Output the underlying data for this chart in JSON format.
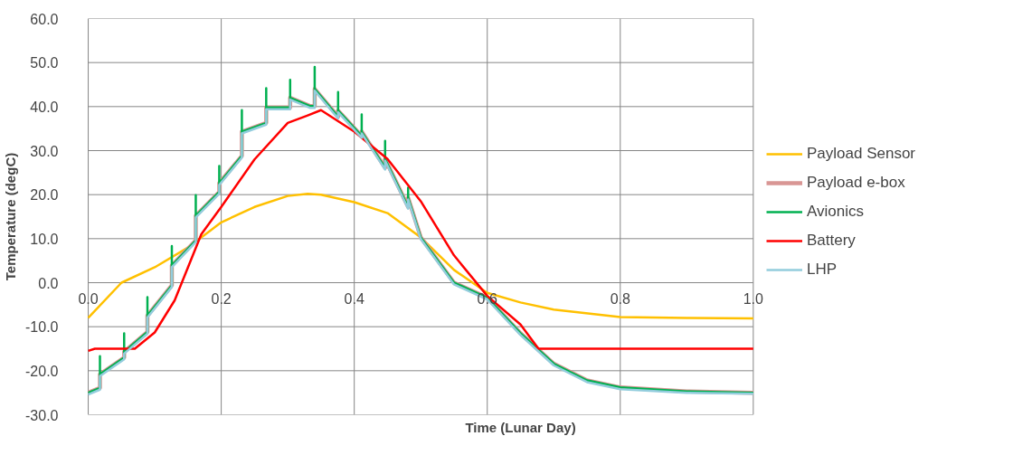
{
  "chart_data": {
    "type": "line",
    "xlabel": "Time (Lunar Day)",
    "ylabel": "Temperature (degC)",
    "xlim": [
      0,
      1
    ],
    "ylim": [
      -30,
      60
    ],
    "xticks": [
      {
        "value": 0,
        "label": "0.0"
      },
      {
        "value": 0.2,
        "label": "0.2"
      },
      {
        "value": 0.4,
        "label": "0.4"
      },
      {
        "value": 0.6,
        "label": "0.6"
      },
      {
        "value": 0.8,
        "label": "0.8"
      },
      {
        "value": 1,
        "label": "1.0"
      }
    ],
    "yticks": [
      {
        "value": -30,
        "label": "-30.0"
      },
      {
        "value": -20,
        "label": "-20.0"
      },
      {
        "value": -10,
        "label": "-10.0"
      },
      {
        "value": 0,
        "label": "0.0"
      },
      {
        "value": 10,
        "label": "10.0"
      },
      {
        "value": 20,
        "label": "20.0"
      },
      {
        "value": 30,
        "label": "30.0"
      },
      {
        "value": 40,
        "label": "40.0"
      },
      {
        "value": 50,
        "label": "50.0"
      },
      {
        "value": 60,
        "label": "60.0"
      }
    ],
    "grid": true,
    "legend": "right",
    "line_style": "solid",
    "marker": "none",
    "series": [
      {
        "name": "Payload Sensor",
        "color": "#ffc000",
        "x": [
          0,
          0.05,
          0.1,
          0.15,
          0.2,
          0.25,
          0.3,
          0.33,
          0.35,
          0.4,
          0.45,
          0.5,
          0.55,
          0.6,
          0.65,
          0.7,
          0.8,
          0.9,
          1.0
        ],
        "values": [
          -8,
          0,
          3.5,
          8,
          13.7,
          17.2,
          19.7,
          20.2,
          20,
          18.3,
          15.8,
          10.3,
          2.9,
          -2.3,
          -4.5,
          -6.1,
          -7.8,
          -8,
          -8.1
        ]
      },
      {
        "name": "Payload e-box",
        "color": "#d99694",
        "x": [
          0,
          0.0176,
          0.0176,
          0.054,
          0.054,
          0.089,
          0.089,
          0.1257,
          0.1257,
          0.1617,
          0.1617,
          0.197,
          0.197,
          0.231,
          0.231,
          0.2676,
          0.2676,
          0.3036,
          0.3036,
          0.334,
          0.3405,
          0.3405,
          0.3757,
          0.3757,
          0.4112,
          0.4112,
          0.4464,
          0.4464,
          0.481,
          0.481,
          0.5,
          0.55,
          0.6,
          0.65,
          0.7,
          0.75,
          0.8,
          0.9,
          1.0
        ],
        "values": [
          -25,
          -23.9,
          -20.8,
          -17,
          -15.7,
          -11.2,
          -7.5,
          -0.6,
          3.9,
          9.6,
          15.2,
          20.6,
          22.6,
          28.8,
          34.3,
          36.3,
          39.8,
          39.8,
          42,
          40.1,
          40.1,
          44,
          37.7,
          39.1,
          33.3,
          34.3,
          26.1,
          28.1,
          17.2,
          19.3,
          10.3,
          0,
          -3.4,
          -11.5,
          -18.4,
          -22.2,
          -23.8,
          -24.7,
          -25
        ]
      },
      {
        "name": "Avionics",
        "color": "#00b050",
        "x": [
          0,
          0.0176,
          0.0176,
          0.0176,
          0.0176,
          0.054,
          0.054,
          0.054,
          0.054,
          0.089,
          0.089,
          0.089,
          0.089,
          0.1257,
          0.1257,
          0.1257,
          0.1257,
          0.1617,
          0.1617,
          0.1617,
          0.1617,
          0.197,
          0.197,
          0.197,
          0.197,
          0.231,
          0.231,
          0.231,
          0.231,
          0.2676,
          0.2676,
          0.2676,
          0.2676,
          0.3036,
          0.3036,
          0.3036,
          0.3036,
          0.334,
          0.3405,
          0.3405,
          0.3405,
          0.3405,
          0.3757,
          0.3757,
          0.3757,
          0.3757,
          0.4112,
          0.4112,
          0.4112,
          0.4112,
          0.4464,
          0.4464,
          0.4464,
          0.4464,
          0.481,
          0.481,
          0.481,
          0.481,
          0.5,
          0.55,
          0.6,
          0.65,
          0.7,
          0.75,
          0.8,
          0.9,
          1.0
        ],
        "values": [
          -25,
          -23.9,
          -20.8,
          -16.7,
          -20.8,
          -17,
          -15.7,
          -11.5,
          -15.7,
          -11.2,
          -7.5,
          -3.3,
          -7.5,
          -0.6,
          3.9,
          8.3,
          3.9,
          9.6,
          15.2,
          19.9,
          15.2,
          20.6,
          22.6,
          26.5,
          22.6,
          28.8,
          34.3,
          39.2,
          34.3,
          36.3,
          39.8,
          44.2,
          39.8,
          39.8,
          42,
          46.1,
          42,
          40.1,
          40.1,
          44,
          49,
          44,
          37.7,
          39.1,
          43.3,
          39.1,
          33.3,
          34.3,
          38.2,
          34.3,
          26.1,
          28.1,
          32.2,
          28.1,
          17.2,
          19.3,
          21.6,
          19.3,
          10.3,
          0,
          -3.4,
          -11.5,
          -18.4,
          -22.2,
          -23.8,
          -24.7,
          -25
        ]
      },
      {
        "name": "Battery",
        "color": "#ff0000",
        "x": [
          0,
          0.01,
          0.07,
          0.1,
          0.13,
          0.15,
          0.17,
          0.2,
          0.25,
          0.3,
          0.33,
          0.35,
          0.4,
          0.45,
          0.5,
          0.55,
          0.6,
          0.65,
          0.677,
          1.0
        ],
        "values": [
          -15.5,
          -15,
          -15,
          -11.3,
          -4,
          3.5,
          11,
          17.2,
          28,
          36.3,
          38,
          39.2,
          34.3,
          28.1,
          18.5,
          6.2,
          -3,
          -9.5,
          -15,
          -15
        ]
      },
      {
        "name": "LHP",
        "color": "#93cddd",
        "x": [
          0,
          0.0176,
          0.0176,
          0.054,
          0.054,
          0.089,
          0.089,
          0.1257,
          0.1257,
          0.1617,
          0.1617,
          0.197,
          0.197,
          0.231,
          0.231,
          0.2676,
          0.2676,
          0.3036,
          0.3036,
          0.334,
          0.3405,
          0.3405,
          0.3757,
          0.3757,
          0.4112,
          0.4112,
          0.4464,
          0.4464,
          0.481,
          0.481,
          0.5,
          0.55,
          0.6,
          0.65,
          0.7,
          0.75,
          0.8,
          0.9,
          1.0
        ],
        "values": [
          -25.4,
          -24.3,
          -21.2,
          -17.4,
          -16.1,
          -11.6,
          -7.9,
          -1,
          3.5,
          9.2,
          14.8,
          20.2,
          22.2,
          28.4,
          33.9,
          35.9,
          39.4,
          39.4,
          41.6,
          39.7,
          39.7,
          43.6,
          37.3,
          38.7,
          32.9,
          33.9,
          25.7,
          27.7,
          16.8,
          18.9,
          9.9,
          -0.4,
          -3.8,
          -11.9,
          -18.8,
          -22.6,
          -24.2,
          -25,
          -25.2
        ]
      }
    ]
  }
}
